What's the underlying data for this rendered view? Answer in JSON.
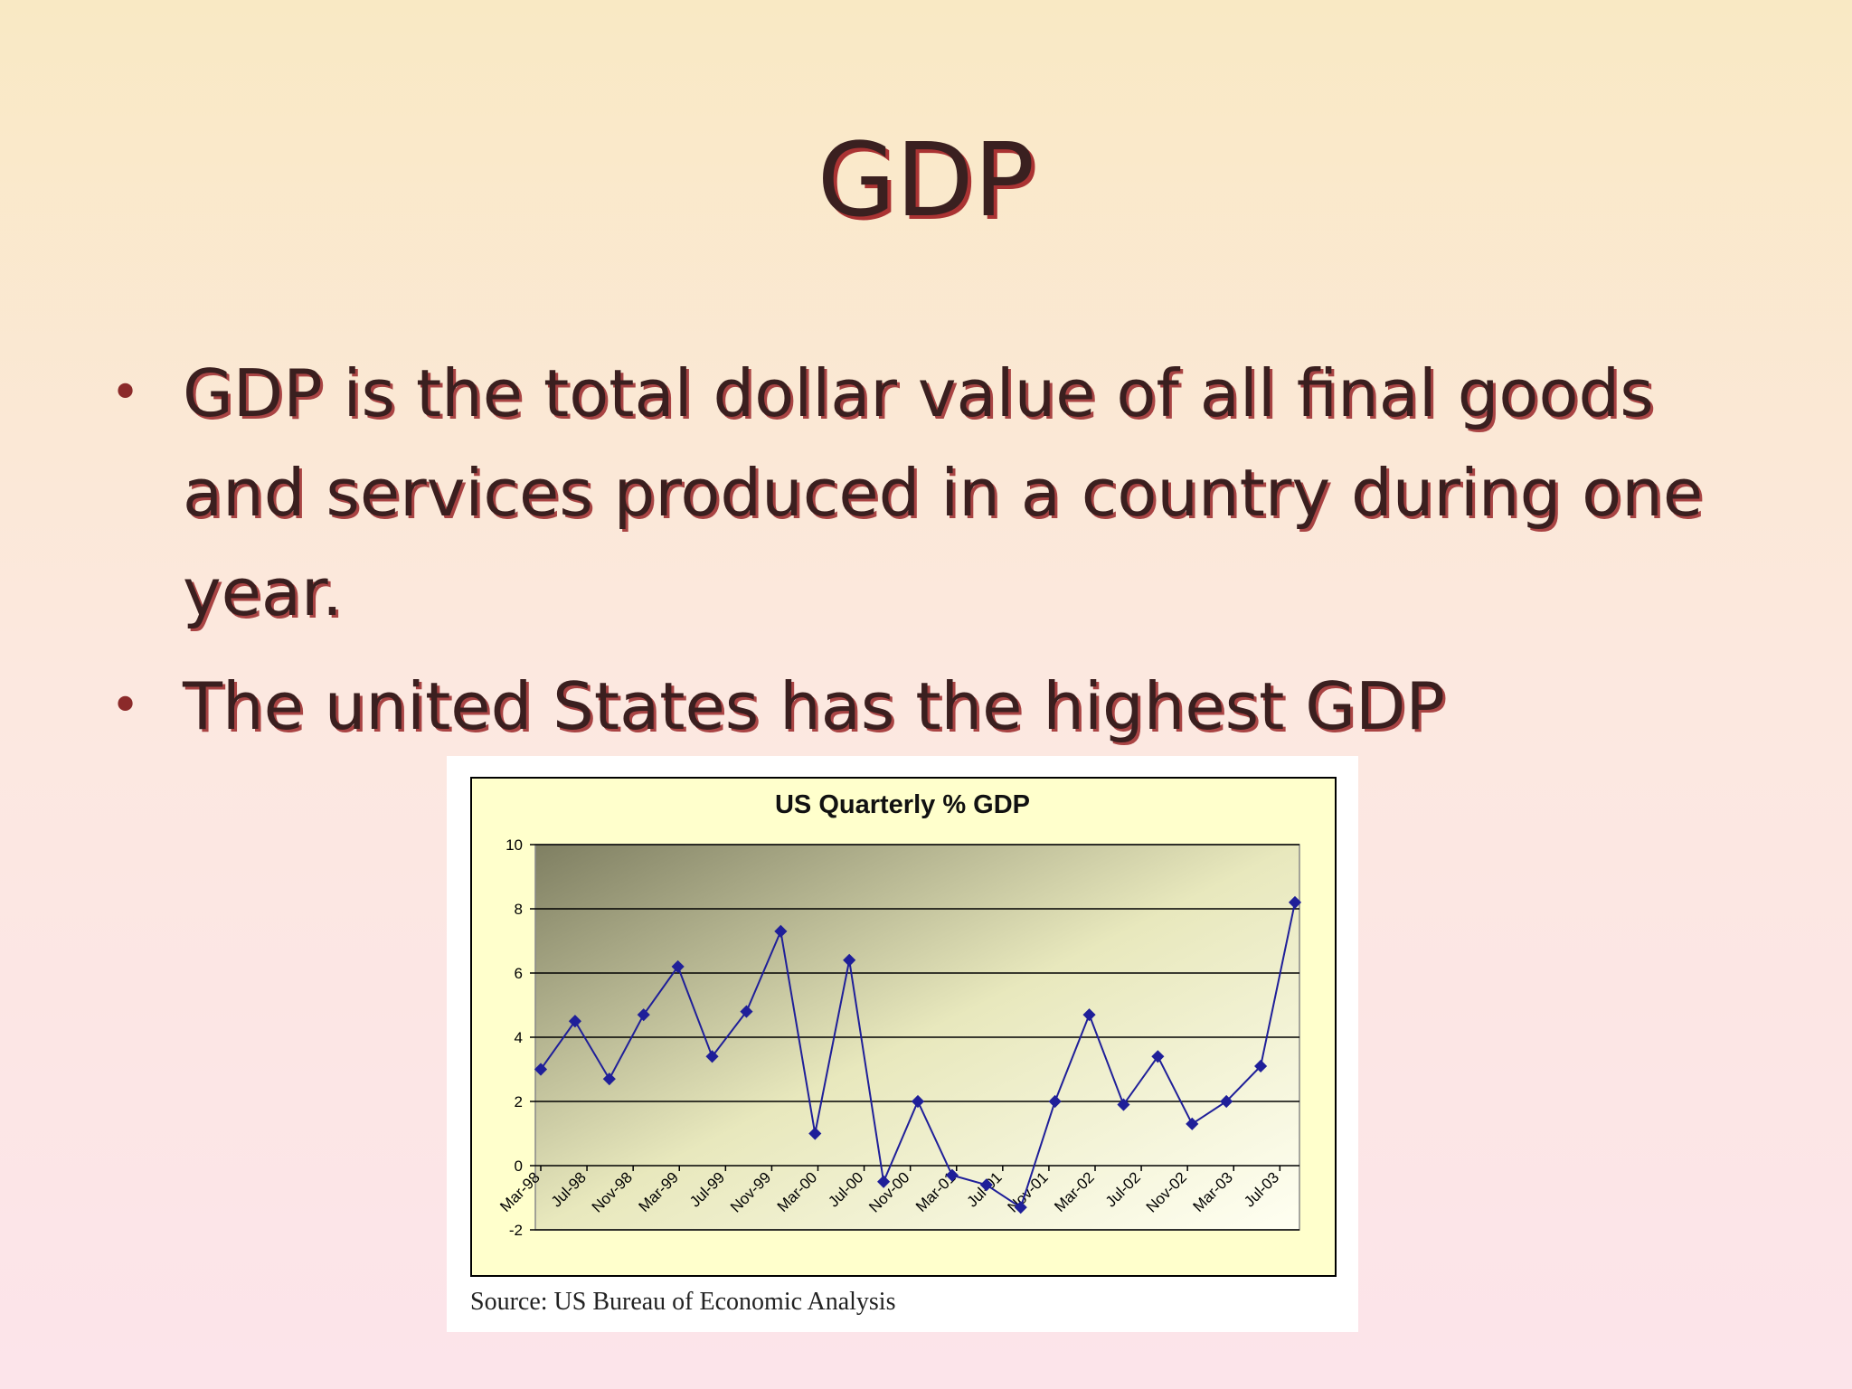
{
  "slide": {
    "title": "GDP",
    "bullets": [
      "GDP is the total dollar value of all final goods and services produced in a country during one year.",
      "The united States has the highest GDP"
    ]
  },
  "chart_data": {
    "type": "line",
    "title": "US Quarterly % GDP",
    "source": "Source: US Bureau of Economic Analysis",
    "xticks": [
      "Mar-98",
      "Jul-98",
      "Nov-98",
      "Mar-99",
      "Jul-99",
      "Nov-99",
      "Mar-00",
      "Jul-00",
      "Nov-00",
      "Mar-01",
      "Jul-01",
      "Nov-01",
      "Mar-02",
      "Jul-02",
      "Nov-02",
      "Mar-03",
      "Jul-03"
    ],
    "values": [
      3.0,
      4.5,
      2.7,
      4.7,
      6.2,
      3.4,
      4.8,
      7.3,
      1.0,
      6.4,
      -0.5,
      2.0,
      -0.3,
      -0.6,
      -1.3,
      2.0,
      4.7,
      1.9,
      3.4,
      1.3,
      2.0,
      3.1,
      8.2
    ],
    "color": "#1f1f99",
    "ylim": [
      -2,
      10
    ],
    "yticks": [
      -2,
      0,
      2,
      4,
      6,
      8,
      10
    ],
    "grid": true
  }
}
